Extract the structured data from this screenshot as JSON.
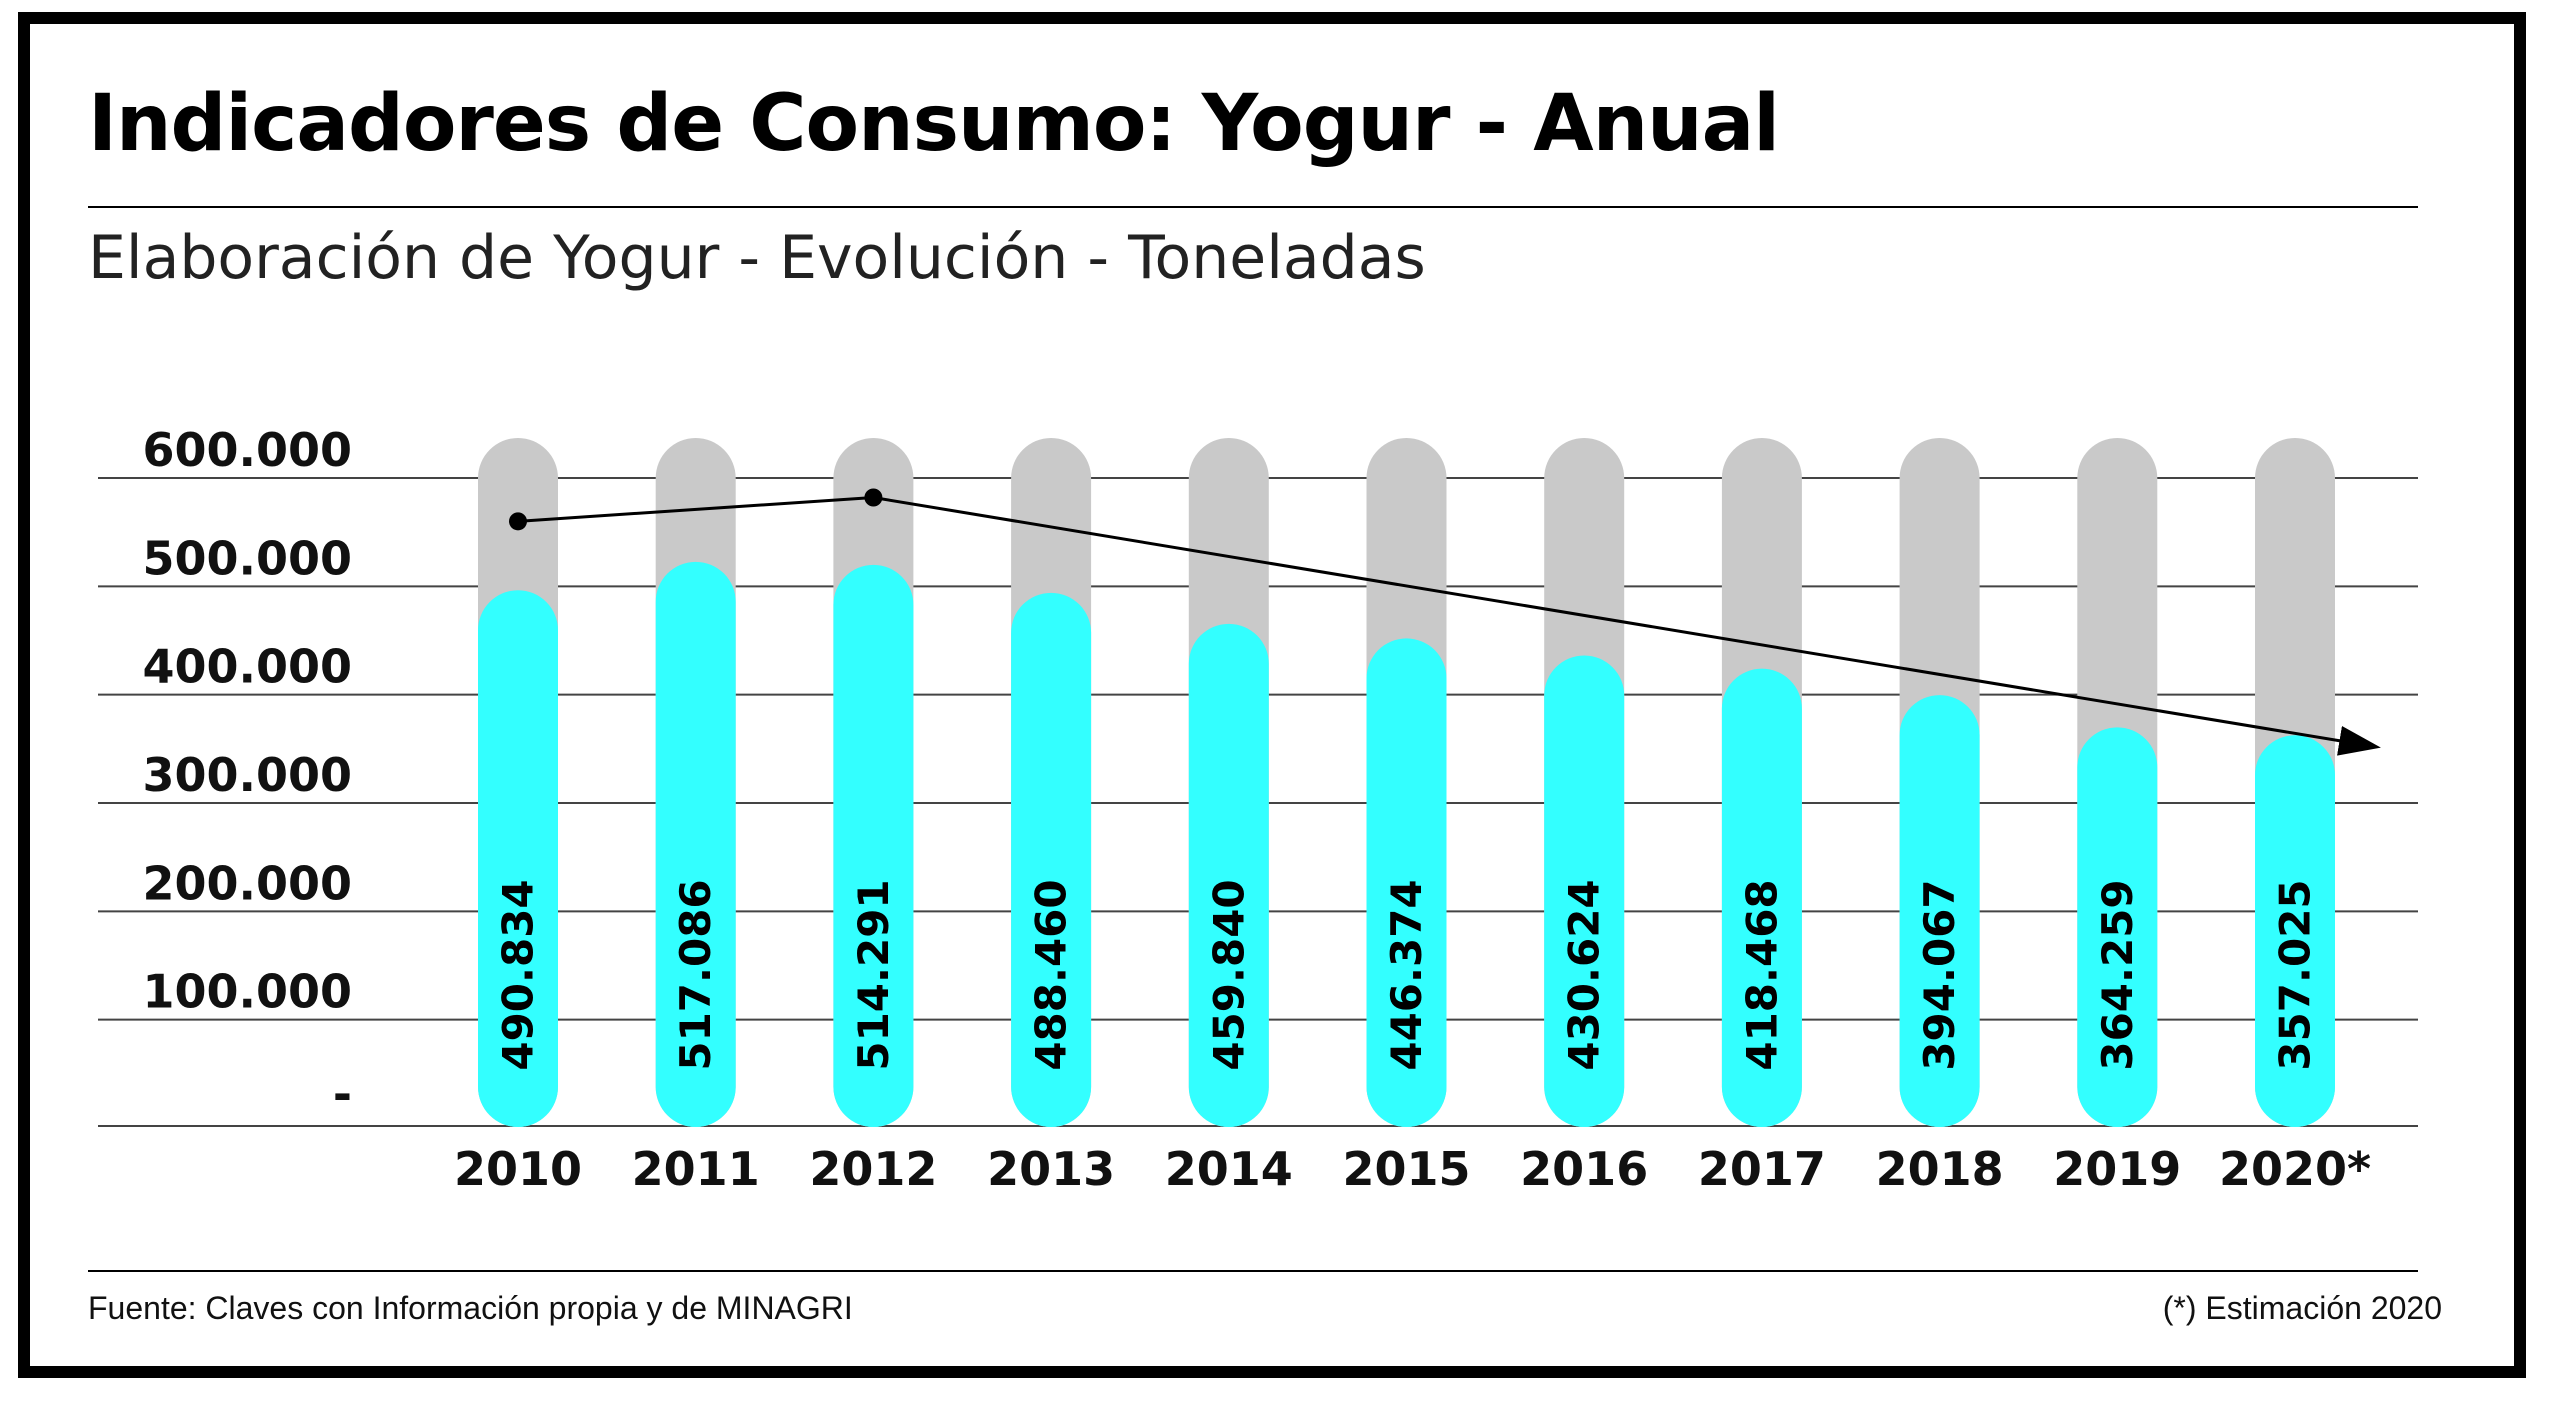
{
  "header": {
    "title": "Indicadores de Consumo: Yogur - Anual",
    "subtitle": "Elaboración de Yogur - Evolución - Toneladas"
  },
  "footer": {
    "source": "Fuente: Claves con Información propia y de MINAGRI",
    "note": "(*) Estimación 2020"
  },
  "colors": {
    "bar": "#33ffff",
    "track": "#c9c9c9",
    "grid": "#444444",
    "trend": "#000000"
  },
  "chart_data": {
    "type": "bar",
    "title": "Elaboración de Yogur - Evolución - Toneladas",
    "categories": [
      "2010",
      "2011",
      "2012",
      "2013",
      "2014",
      "2015",
      "2016",
      "2017",
      "2018",
      "2019",
      "2020*"
    ],
    "values": [
      490834,
      517086,
      514291,
      488460,
      459840,
      446374,
      430624,
      418468,
      394067,
      364259,
      357025
    ],
    "value_labels": [
      "490.834",
      "517.086",
      "514.291",
      "488.460",
      "459.840",
      "446.374",
      "430.624",
      "418.468",
      "394.067",
      "364.259",
      "357.025"
    ],
    "yticks": [
      0,
      100000,
      200000,
      300000,
      400000,
      500000,
      600000
    ],
    "ytick_labels": [
      "-",
      "100.000",
      "200.000",
      "300.000",
      "400.000",
      "500.000",
      "600.000"
    ],
    "ylim": [
      0,
      600000
    ],
    "grid": true,
    "trend_line": {
      "points": [
        {
          "category": "2010",
          "value": 560000
        },
        {
          "category": "2012",
          "value": 582000
        }
      ],
      "end": {
        "category": "2020*",
        "value": 352000
      }
    }
  }
}
